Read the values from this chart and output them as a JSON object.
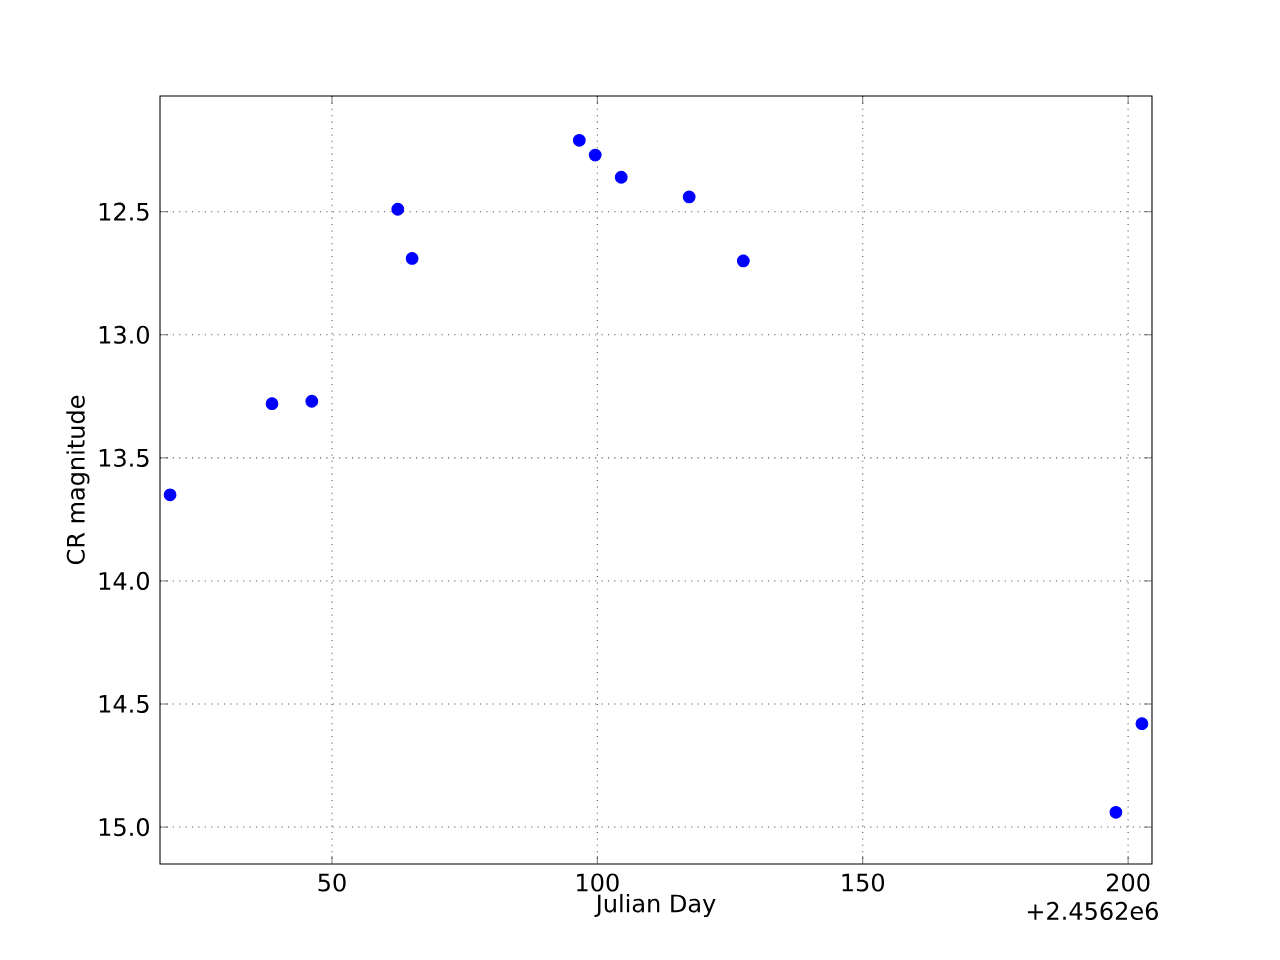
{
  "chart_data": {
    "type": "scatter",
    "xlabel": "Julian Day",
    "ylabel": "CR magnitude",
    "x": [
      19.5,
      38.7,
      46.2,
      62.4,
      65.1,
      96.6,
      99.6,
      104.5,
      117.3,
      127.5,
      197.7,
      202.6
    ],
    "series": [
      {
        "color": "#0000ff",
        "values": [
          13.65,
          13.28,
          13.27,
          12.49,
          12.69,
          12.21,
          12.27,
          12.36,
          12.44,
          12.7,
          14.94,
          14.58
        ]
      }
    ],
    "xlim": [
      17.6,
      204.5
    ],
    "ylim": [
      15.15,
      12.03
    ],
    "xticks": [
      50,
      100,
      150,
      200
    ],
    "yticks": [
      12.5,
      {
        "value": 13,
        "label": "13.0"
      },
      13.5,
      {
        "value": 14,
        "label": "14.0"
      },
      14.5,
      {
        "value": 15,
        "label": "15.0"
      }
    ],
    "grid": true,
    "marker": "circle",
    "annotations": [
      "+2.4562e6"
    ]
  }
}
